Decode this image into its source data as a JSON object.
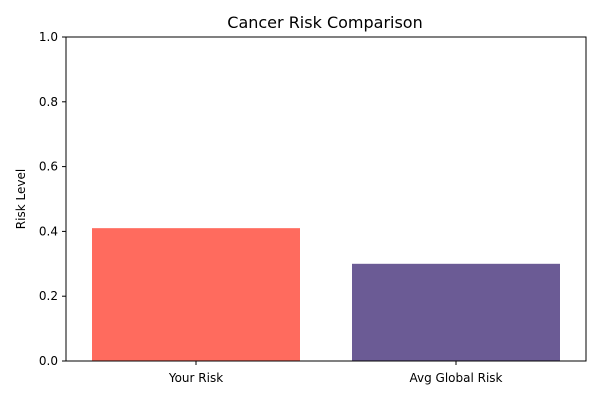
{
  "chart_data": {
    "type": "bar",
    "title": "Cancer Risk Comparison",
    "xlabel": "",
    "ylabel": "Risk Level",
    "categories": [
      "Your Risk",
      "Avg Global Risk"
    ],
    "values": [
      0.41,
      0.3
    ],
    "colors": [
      "#ff6b5e",
      "#6b5b95"
    ],
    "ylim": [
      0,
      1.0
    ],
    "yticks": [
      0.0,
      0.2,
      0.4,
      0.6,
      0.8,
      1.0
    ],
    "ytick_labels": [
      "0.0",
      "0.2",
      "0.4",
      "0.6",
      "0.8",
      "1.0"
    ],
    "grid": false,
    "legend": "none"
  }
}
